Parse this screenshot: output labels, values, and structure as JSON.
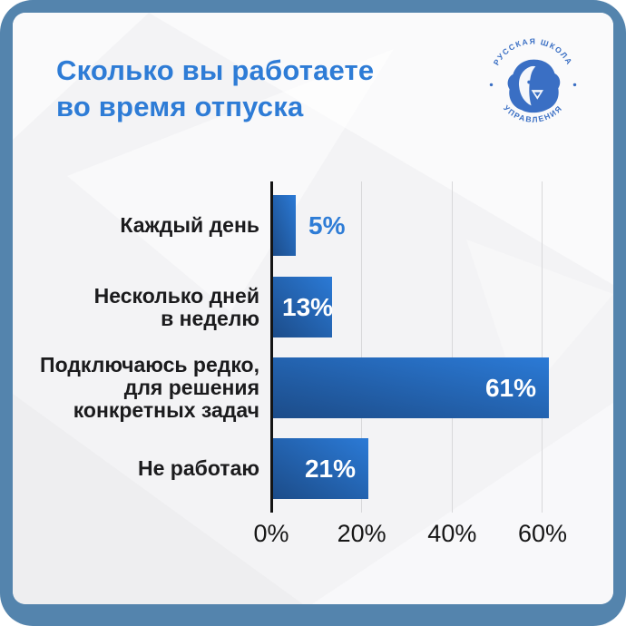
{
  "frame": {
    "border_color": "#5484ad",
    "card_background": "#f3f3f5",
    "outer_background": "#ffffff"
  },
  "header": {
    "title": "Сколько вы работаете во время отпуска",
    "title_lines": [
      "Сколько вы работаете",
      "во время отпуска"
    ],
    "title_color": "#2e7cd6"
  },
  "logo": {
    "top_text": "РУССКАЯ ШКОЛА",
    "bottom_text": "УПРАВЛЕНИЯ",
    "color": "#3a6fc4"
  },
  "chart_data": {
    "type": "bar",
    "orientation": "horizontal",
    "title": "Сколько вы работаете во время отпуска",
    "categories": [
      "Каждый день",
      "Несколько дней в неделю",
      "Подключаюсь редко, для решения конкретных задач",
      "Не работаю"
    ],
    "category_lines": [
      [
        "Каждый день"
      ],
      [
        "Несколько дней",
        "в неделю"
      ],
      [
        "Подключаюсь редко,",
        "для решения",
        "конкретных задач"
      ],
      [
        "Не работаю"
      ]
    ],
    "values": [
      5,
      13,
      61,
      21
    ],
    "value_labels": [
      "5%",
      "13%",
      "61%",
      "21%"
    ],
    "value_label_positions": [
      "outside",
      "inside-left",
      "inside-right",
      "inside-right"
    ],
    "x_tick_labels": [
      "0%",
      "20%",
      "40%",
      "60%"
    ],
    "x_tick_values": [
      0,
      20,
      40,
      60
    ],
    "xlim": [
      0,
      70
    ],
    "xlabel": "",
    "ylabel": "",
    "grid": "vertical-only",
    "legend": "none",
    "bar_gradient": [
      "#1c4c89",
      "#2b7ad6"
    ],
    "value_outside_color": "#2e7cd6",
    "value_inside_color": "#ffffff",
    "axis_color": "#141414",
    "gridline_color": "#d8d8da"
  }
}
